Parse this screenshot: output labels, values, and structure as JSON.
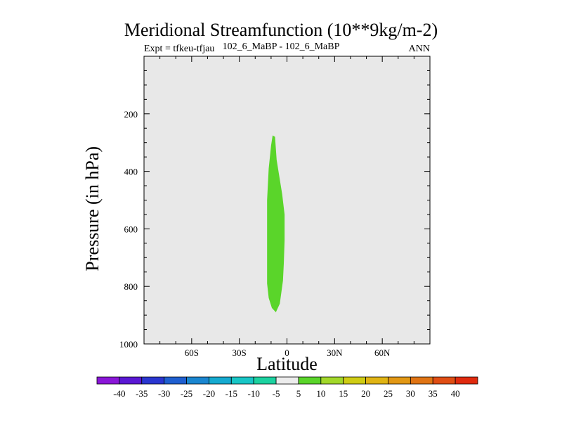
{
  "title": "Meridional Streamfunction (10**9kg/m-2)",
  "subtitle_left": "Expt = tfkeu-tfjau",
  "subtitle_center": "102_6_MaBP - 102_6_MaBP",
  "subtitle_right": "ANN",
  "colors": {
    "background_field": "#e8e8e8",
    "positive_5_10": "#5ad52a"
  },
  "chart_data": {
    "type": "heatmap",
    "xlabel": "Latitude",
    "ylabel": "Pressure (in hPa)",
    "xlim": [
      -90,
      90
    ],
    "ylim": [
      1000,
      0
    ],
    "x_ticks": [
      {
        "value": -60,
        "label": "60S"
      },
      {
        "value": -30,
        "label": "30S"
      },
      {
        "value": 0,
        "label": "0"
      },
      {
        "value": 30,
        "label": "30N"
      },
      {
        "value": 60,
        "label": "60N"
      }
    ],
    "y_ticks": [
      {
        "value": 200,
        "label": "200"
      },
      {
        "value": 400,
        "label": "400"
      },
      {
        "value": 600,
        "label": "600"
      },
      {
        "value": 800,
        "label": "800"
      },
      {
        "value": 1000,
        "label": "1000"
      }
    ],
    "filled_region": {
      "level_range": [
        5,
        10
      ],
      "color": "#5ad52a",
      "outline": [
        {
          "lat": -9.0,
          "p": 275
        },
        {
          "lat": -7.5,
          "p": 280
        },
        {
          "lat": -6.5,
          "p": 360
        },
        {
          "lat": -3.0,
          "p": 480
        },
        {
          "lat": -1.5,
          "p": 550
        },
        {
          "lat": -1.5,
          "p": 640
        },
        {
          "lat": -2.0,
          "p": 720
        },
        {
          "lat": -2.5,
          "p": 780
        },
        {
          "lat": -4.5,
          "p": 860
        },
        {
          "lat": -7.0,
          "p": 890
        },
        {
          "lat": -9.5,
          "p": 875
        },
        {
          "lat": -11.5,
          "p": 840
        },
        {
          "lat": -12.5,
          "p": 790
        },
        {
          "lat": -12.5,
          "p": 700
        },
        {
          "lat": -12.5,
          "p": 600
        },
        {
          "lat": -12.5,
          "p": 500
        },
        {
          "lat": -11.5,
          "p": 390
        },
        {
          "lat": -10.0,
          "p": 310
        }
      ]
    },
    "colorbar": {
      "labels": [
        "-40",
        "-35",
        "-30",
        "-25",
        "-20",
        "-15",
        "-10",
        "-5",
        "5",
        "10",
        "15",
        "20",
        "25",
        "30",
        "35",
        "40"
      ],
      "colors": [
        "#8a16d8",
        "#5a18d4",
        "#2a36d0",
        "#1f5fd0",
        "#1a86d0",
        "#15aad0",
        "#18c6c6",
        "#1cd2a0",
        "#ececec",
        "#5ad52a",
        "#a2d82a",
        "#cfcc14",
        "#e0b414",
        "#e29814",
        "#e07414",
        "#e04e14",
        "#e02a0e"
      ]
    }
  }
}
